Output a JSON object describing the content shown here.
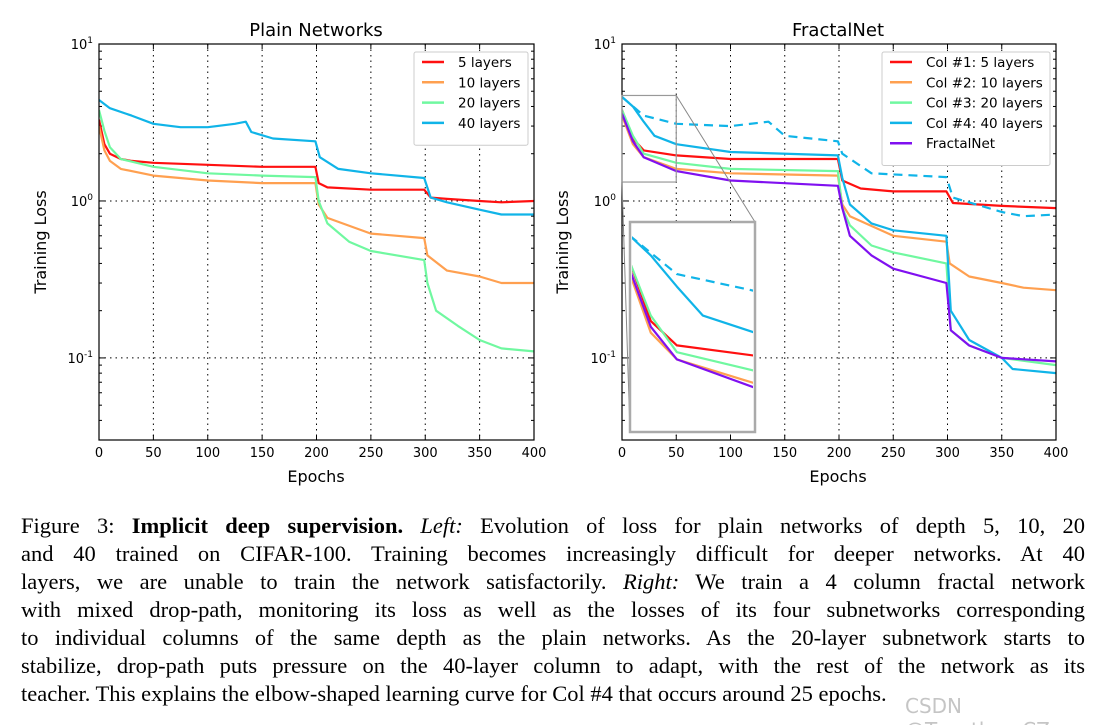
{
  "chart_data": [
    {
      "type": "line",
      "title": "Plain Networks",
      "xlabel": "Epochs",
      "ylabel": "Training Loss",
      "xlim": [
        0,
        400
      ],
      "ylim": [
        0.03,
        10
      ],
      "yscale": "log",
      "xticks": [
        "0",
        "50",
        "100",
        "150",
        "200",
        "250",
        "300",
        "350",
        "400"
      ],
      "yticks": [
        {
          "base": "10",
          "exp": "1",
          "value": 10
        },
        {
          "base": "10",
          "exp": "0",
          "value": 1
        },
        {
          "base": "10",
          "exp": "-1",
          "value": 0.1
        }
      ],
      "grid": true,
      "legend_position": "top-right",
      "series": [
        {
          "name": "5 layers",
          "color": "#ff1010",
          "x": [
            0,
            5,
            10,
            20,
            30,
            50,
            100,
            150,
            199,
            202,
            210,
            250,
            299,
            305,
            320,
            350,
            370,
            400
          ],
          "y": [
            3.3,
            2.3,
            2.0,
            1.85,
            1.8,
            1.75,
            1.7,
            1.65,
            1.65,
            1.3,
            1.22,
            1.18,
            1.18,
            1.05,
            1.03,
            1.0,
            0.98,
            1.0
          ]
        },
        {
          "name": "10 layers",
          "color": "#ffa050",
          "x": [
            0,
            5,
            10,
            20,
            50,
            100,
            150,
            199,
            202,
            210,
            250,
            299,
            302,
            320,
            350,
            370,
            400
          ],
          "y": [
            3.0,
            2.1,
            1.8,
            1.6,
            1.45,
            1.35,
            1.3,
            1.3,
            0.95,
            0.78,
            0.62,
            0.58,
            0.45,
            0.36,
            0.33,
            0.3,
            0.3
          ]
        },
        {
          "name": "20 layers",
          "color": "#70f8a0",
          "x": [
            0,
            5,
            10,
            20,
            50,
            100,
            150,
            199,
            202,
            210,
            230,
            250,
            299,
            302,
            310,
            330,
            350,
            370,
            400
          ],
          "y": [
            3.8,
            2.8,
            2.2,
            1.85,
            1.65,
            1.5,
            1.45,
            1.42,
            1.0,
            0.72,
            0.55,
            0.48,
            0.42,
            0.3,
            0.2,
            0.16,
            0.13,
            0.115,
            0.11
          ]
        },
        {
          "name": "40 layers",
          "color": "#10b4e8",
          "x": [
            0,
            10,
            30,
            50,
            75,
            100,
            125,
            135,
            140,
            160,
            199,
            203,
            220,
            250,
            299,
            305,
            320,
            350,
            370,
            400
          ],
          "y": [
            4.4,
            3.9,
            3.5,
            3.1,
            2.95,
            2.95,
            3.1,
            3.2,
            2.75,
            2.5,
            2.4,
            1.9,
            1.6,
            1.5,
            1.4,
            1.05,
            0.98,
            0.88,
            0.82,
            0.82
          ]
        }
      ]
    },
    {
      "type": "line",
      "title": "FractalNet",
      "xlabel": "Epochs",
      "ylabel": "Training Loss",
      "xlim": [
        0,
        400
      ],
      "ylim": [
        0.03,
        10
      ],
      "yscale": "log",
      "xticks": [
        "0",
        "50",
        "100",
        "150",
        "200",
        "250",
        "300",
        "350",
        "400"
      ],
      "yticks": [
        {
          "base": "10",
          "exp": "1",
          "value": 10
        },
        {
          "base": "10",
          "exp": "0",
          "value": 1
        },
        {
          "base": "10",
          "exp": "-1",
          "value": 0.1
        }
      ],
      "grid": true,
      "legend_position": "top-right",
      "inset": {
        "xlim": [
          2,
          50
        ],
        "ylim": [
          1.38,
          4.8
        ]
      },
      "series": [
        {
          "name": "Col #1: 5 layers",
          "color": "#ff1010",
          "x": [
            0,
            10,
            20,
            50,
            100,
            199,
            203,
            220,
            250,
            299,
            305,
            350,
            400
          ],
          "y": [
            3.8,
            2.5,
            2.1,
            1.95,
            1.85,
            1.85,
            1.35,
            1.2,
            1.15,
            1.15,
            0.97,
            0.93,
            0.9
          ]
        },
        {
          "name": "Col #2: 10 layers",
          "color": "#ffa050",
          "x": [
            0,
            10,
            20,
            50,
            100,
            199,
            203,
            210,
            250,
            299,
            302,
            320,
            350,
            370,
            400
          ],
          "y": [
            3.5,
            2.3,
            1.9,
            1.6,
            1.5,
            1.45,
            0.95,
            0.8,
            0.6,
            0.55,
            0.4,
            0.33,
            0.3,
            0.28,
            0.27
          ]
        },
        {
          "name": "Col #3: 20 layers",
          "color": "#70f8a0",
          "x": [
            0,
            10,
            20,
            50,
            100,
            199,
            203,
            210,
            230,
            250,
            299,
            303,
            320,
            350,
            400
          ],
          "y": [
            3.8,
            2.6,
            2.0,
            1.75,
            1.6,
            1.55,
            0.9,
            0.7,
            0.52,
            0.47,
            0.4,
            0.15,
            0.12,
            0.1,
            0.09
          ]
        },
        {
          "name": "Col #4: 40 layers",
          "color": "#10b4e8",
          "x": [
            0,
            10,
            20,
            30,
            50,
            100,
            199,
            203,
            210,
            230,
            250,
            299,
            303,
            320,
            350,
            360,
            400
          ],
          "y": [
            4.6,
            4.0,
            3.2,
            2.6,
            2.3,
            2.05,
            1.95,
            1.4,
            0.95,
            0.72,
            0.65,
            0.6,
            0.2,
            0.13,
            0.1,
            0.085,
            0.08
          ]
        },
        {
          "name": "FractalNet",
          "color": "#8010f0",
          "x": [
            0,
            10,
            20,
            50,
            100,
            199,
            203,
            210,
            230,
            250,
            299,
            303,
            320,
            350,
            400
          ],
          "y": [
            3.6,
            2.4,
            1.9,
            1.55,
            1.35,
            1.25,
            0.9,
            0.6,
            0.45,
            0.37,
            0.3,
            0.15,
            0.12,
            0.1,
            0.095
          ]
        },
        {
          "color": "#10b4e8",
          "dashed": true,
          "x": [
            0,
            20,
            50,
            100,
            135,
            150,
            199,
            203,
            230,
            299,
            305,
            350,
            370,
            400
          ],
          "y": [
            4.6,
            3.5,
            3.1,
            3.0,
            3.2,
            2.6,
            2.4,
            2.0,
            1.5,
            1.42,
            1.05,
            0.85,
            0.8,
            0.82
          ]
        }
      ]
    }
  ],
  "caption": {
    "lines": [
      [
        {
          "t": "Figure 3:  "
        },
        {
          "t": "Implicit deep supervision.",
          "s": "b"
        },
        {
          "t": " "
        },
        {
          "t": "Left:",
          "s": "i"
        },
        {
          "t": " Evolution of loss for plain networks of depth 5, 10, 20"
        }
      ],
      [
        {
          "t": "and 40 trained on CIFAR-100. Training becomes increasingly difficult for deeper networks. At 40"
        }
      ],
      [
        {
          "t": "layers, we are unable to train the network satisfactorily. "
        },
        {
          "t": "Right:",
          "s": "i"
        },
        {
          "t": " We train a 4 column fractal network"
        }
      ],
      [
        {
          "t": "with mixed drop-path, monitoring its loss as well as the losses of its four subnetworks corresponding"
        }
      ],
      [
        {
          "t": "to individual columns of the same depth as the plain networks. As the 20-layer subnetwork starts to"
        }
      ],
      [
        {
          "t": "stabilize, drop-path puts pressure on the 40-layer column to adapt, with the rest of the network as its"
        }
      ],
      [
        {
          "t": "teacher. This explains the elbow-shaped learning curve for Col #4 that occurs around 25 epochs."
        }
      ]
    ]
  },
  "watermark": "CSDN @Together_CZ"
}
